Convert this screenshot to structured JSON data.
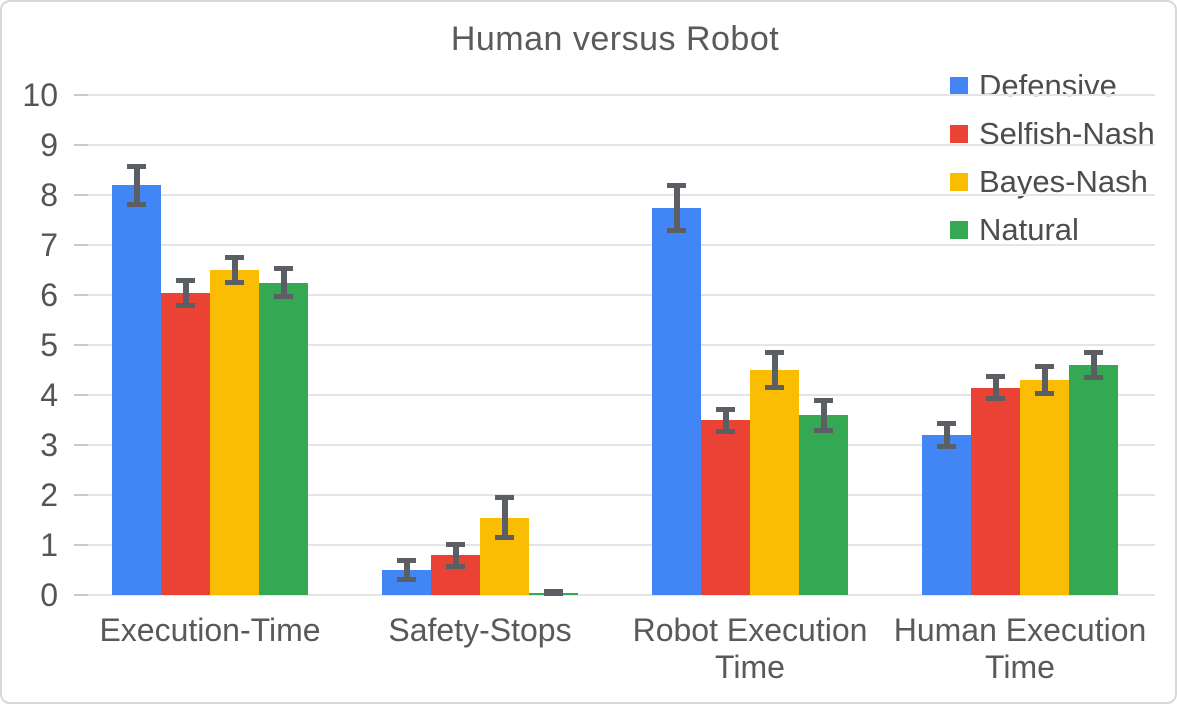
{
  "chart_data": {
    "type": "bar",
    "title": "Human versus Robot",
    "categories": [
      "Execution-Time",
      "Safety-Stops",
      "Robot Execution Time",
      "Human Execution Time"
    ],
    "series": [
      {
        "name": "Defensive",
        "color": "#4285F4",
        "values": [
          8.2,
          0.5,
          7.75,
          3.2
        ],
        "errors": [
          0.43,
          0.24,
          0.5,
          0.28
        ]
      },
      {
        "name": "Selfish-Nash",
        "color": "#EA4335",
        "values": [
          6.05,
          0.8,
          3.5,
          4.15
        ],
        "errors": [
          0.3,
          0.27,
          0.27,
          0.27
        ]
      },
      {
        "name": "Bayes-Nash",
        "color": "#FBBC04",
        "values": [
          6.5,
          1.55,
          4.5,
          4.3
        ],
        "errors": [
          0.3,
          0.45,
          0.4,
          0.32
        ]
      },
      {
        "name": "Natural",
        "color": "#34A853",
        "values": [
          6.25,
          0.05,
          3.6,
          4.6
        ],
        "errors": [
          0.33,
          0.07,
          0.35,
          0.3
        ]
      }
    ],
    "ylim": [
      0,
      10
    ],
    "yticks": [
      0,
      1,
      2,
      3,
      4,
      5,
      6,
      7,
      8,
      9,
      10
    ],
    "grid": true,
    "legend_position": "top-right",
    "error_bar_color": "#5b5e62",
    "gridline_color": "#e5e5e5",
    "bar_text_color": "#58595b"
  }
}
